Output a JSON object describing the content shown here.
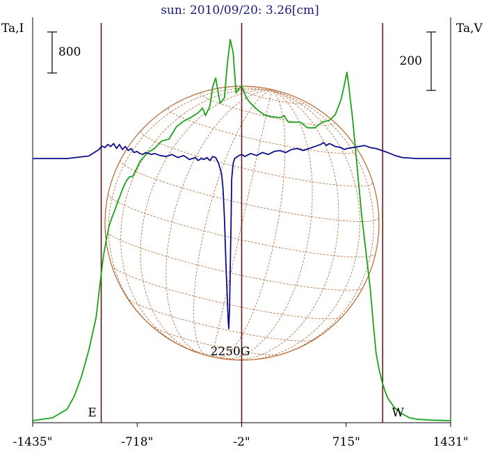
{
  "title": "sun: 2010/09/20: 3.26[cm]",
  "left_axis_label": "Ta,I",
  "right_axis_label": "Ta,V",
  "left_scale_label": "800",
  "right_scale_label": "200",
  "colors": {
    "intensity": "#1aa31a",
    "polarization": "#0b0b8c",
    "limb_lines": "#5a1a1a",
    "grid": "#b5652f",
    "title": "#1a1a7a"
  },
  "chart_data": {
    "type": "line",
    "title": "sun: 2010/09/20: 3.26[cm]",
    "x_range": [
      -1435,
      1431
    ],
    "x_tick_labels": [
      "-1435\"",
      "-718\"",
      "-2\"",
      "715\"",
      "1431\""
    ],
    "x_tick_values": [
      -1435,
      -718,
      -2,
      715,
      1431
    ],
    "limb_markers": [
      {
        "label": "E",
        "x": -965
      },
      {
        "label": "W",
        "x": 965
      }
    ],
    "center_line_x": -2,
    "annotations": [
      {
        "text": "2250G",
        "x": -90
      }
    ],
    "scale_bars": [
      {
        "axis": "left",
        "label": "800"
      },
      {
        "axis": "right",
        "label": "200"
      }
    ],
    "series": [
      {
        "axis": "left",
        "x": [
          -1435,
          -1300,
          -1200,
          -1150,
          -1100,
          -1050,
          -1000,
          -970,
          -950,
          -930,
          -910,
          -890,
          -870,
          -850,
          -830,
          -810,
          -790,
          -770,
          -750,
          -730,
          -700,
          -650,
          -600,
          -550,
          -500,
          -450,
          -400,
          -350,
          -320,
          -300,
          -270,
          -250,
          -220,
          -200,
          -180,
          -150,
          -120,
          -100,
          -80,
          -60,
          -40,
          -20,
          0,
          30,
          60,
          100,
          150,
          200,
          250,
          270,
          290,
          300,
          320,
          350,
          400,
          450,
          500,
          550,
          600,
          640,
          660,
          680,
          700,
          720,
          730,
          760,
          790,
          820,
          850,
          880,
          900,
          920,
          940,
          960,
          980,
          1000,
          1050,
          1100,
          1150,
          1200,
          1300,
          1431
        ],
        "y": [
          0,
          30,
          120,
          260,
          470,
          750,
          1100,
          1500,
          1750,
          1930,
          2080,
          2170,
          2250,
          2340,
          2420,
          2500,
          2560,
          2600,
          2600,
          2660,
          2760,
          2850,
          2900,
          2980,
          3000,
          3130,
          3190,
          3230,
          3260,
          3280,
          3330,
          3250,
          3350,
          3560,
          3650,
          3380,
          3440,
          3800,
          4060,
          3920,
          3490,
          3540,
          3560,
          3440,
          3380,
          3320,
          3260,
          3240,
          3230,
          3230,
          3250,
          3220,
          3180,
          3180,
          3180,
          3120,
          3120,
          3180,
          3200,
          3260,
          3340,
          3420,
          3560,
          3710,
          3600,
          3200,
          2700,
          2200,
          1800,
          1400,
          1050,
          720,
          550,
          420,
          320,
          240,
          130,
          70,
          30,
          15,
          5,
          0
        ]
      },
      {
        "axis": "right",
        "x": [
          -1435,
          -1200,
          -1050,
          -980,
          -960,
          -940,
          -920,
          -900,
          -880,
          -860,
          -840,
          -820,
          -800,
          -780,
          -760,
          -740,
          -720,
          -700,
          -680,
          -660,
          -640,
          -620,
          -600,
          -560,
          -520,
          -480,
          -440,
          -400,
          -360,
          -320,
          -300,
          -280,
          -260,
          -240,
          -220,
          -200,
          -180,
          -160,
          -140,
          -130,
          -120,
          -110,
          -100,
          -95,
          -90,
          -85,
          -80,
          -75,
          -70,
          -60,
          -50,
          -40,
          -20,
          0,
          20,
          60,
          100,
          140,
          180,
          220,
          260,
          300,
          340,
          380,
          420,
          460,
          500,
          540,
          560,
          580,
          600,
          640,
          680,
          700,
          720,
          760,
          800,
          840,
          880,
          920,
          960,
          1000,
          1050,
          1100,
          1200,
          1300,
          1431
        ],
        "y": [
          0,
          0,
          5,
          18,
          25,
          22,
          28,
          24,
          30,
          20,
          28,
          18,
          24,
          16,
          20,
          12,
          14,
          10,
          8,
          12,
          10,
          8,
          10,
          6,
          4,
          8,
          2,
          6,
          -2,
          2,
          -4,
          0,
          -2,
          2,
          -4,
          4,
          2,
          -10,
          -30,
          -60,
          -120,
          -210,
          -280,
          -320,
          -340,
          -300,
          -220,
          -130,
          -40,
          -10,
          0,
          2,
          6,
          8,
          4,
          10,
          6,
          12,
          8,
          14,
          16,
          12,
          18,
          20,
          16,
          20,
          24,
          28,
          32,
          26,
          30,
          24,
          22,
          18,
          20,
          22,
          24,
          26,
          22,
          20,
          16,
          12,
          6,
          2,
          0,
          0,
          0
        ]
      }
    ]
  }
}
